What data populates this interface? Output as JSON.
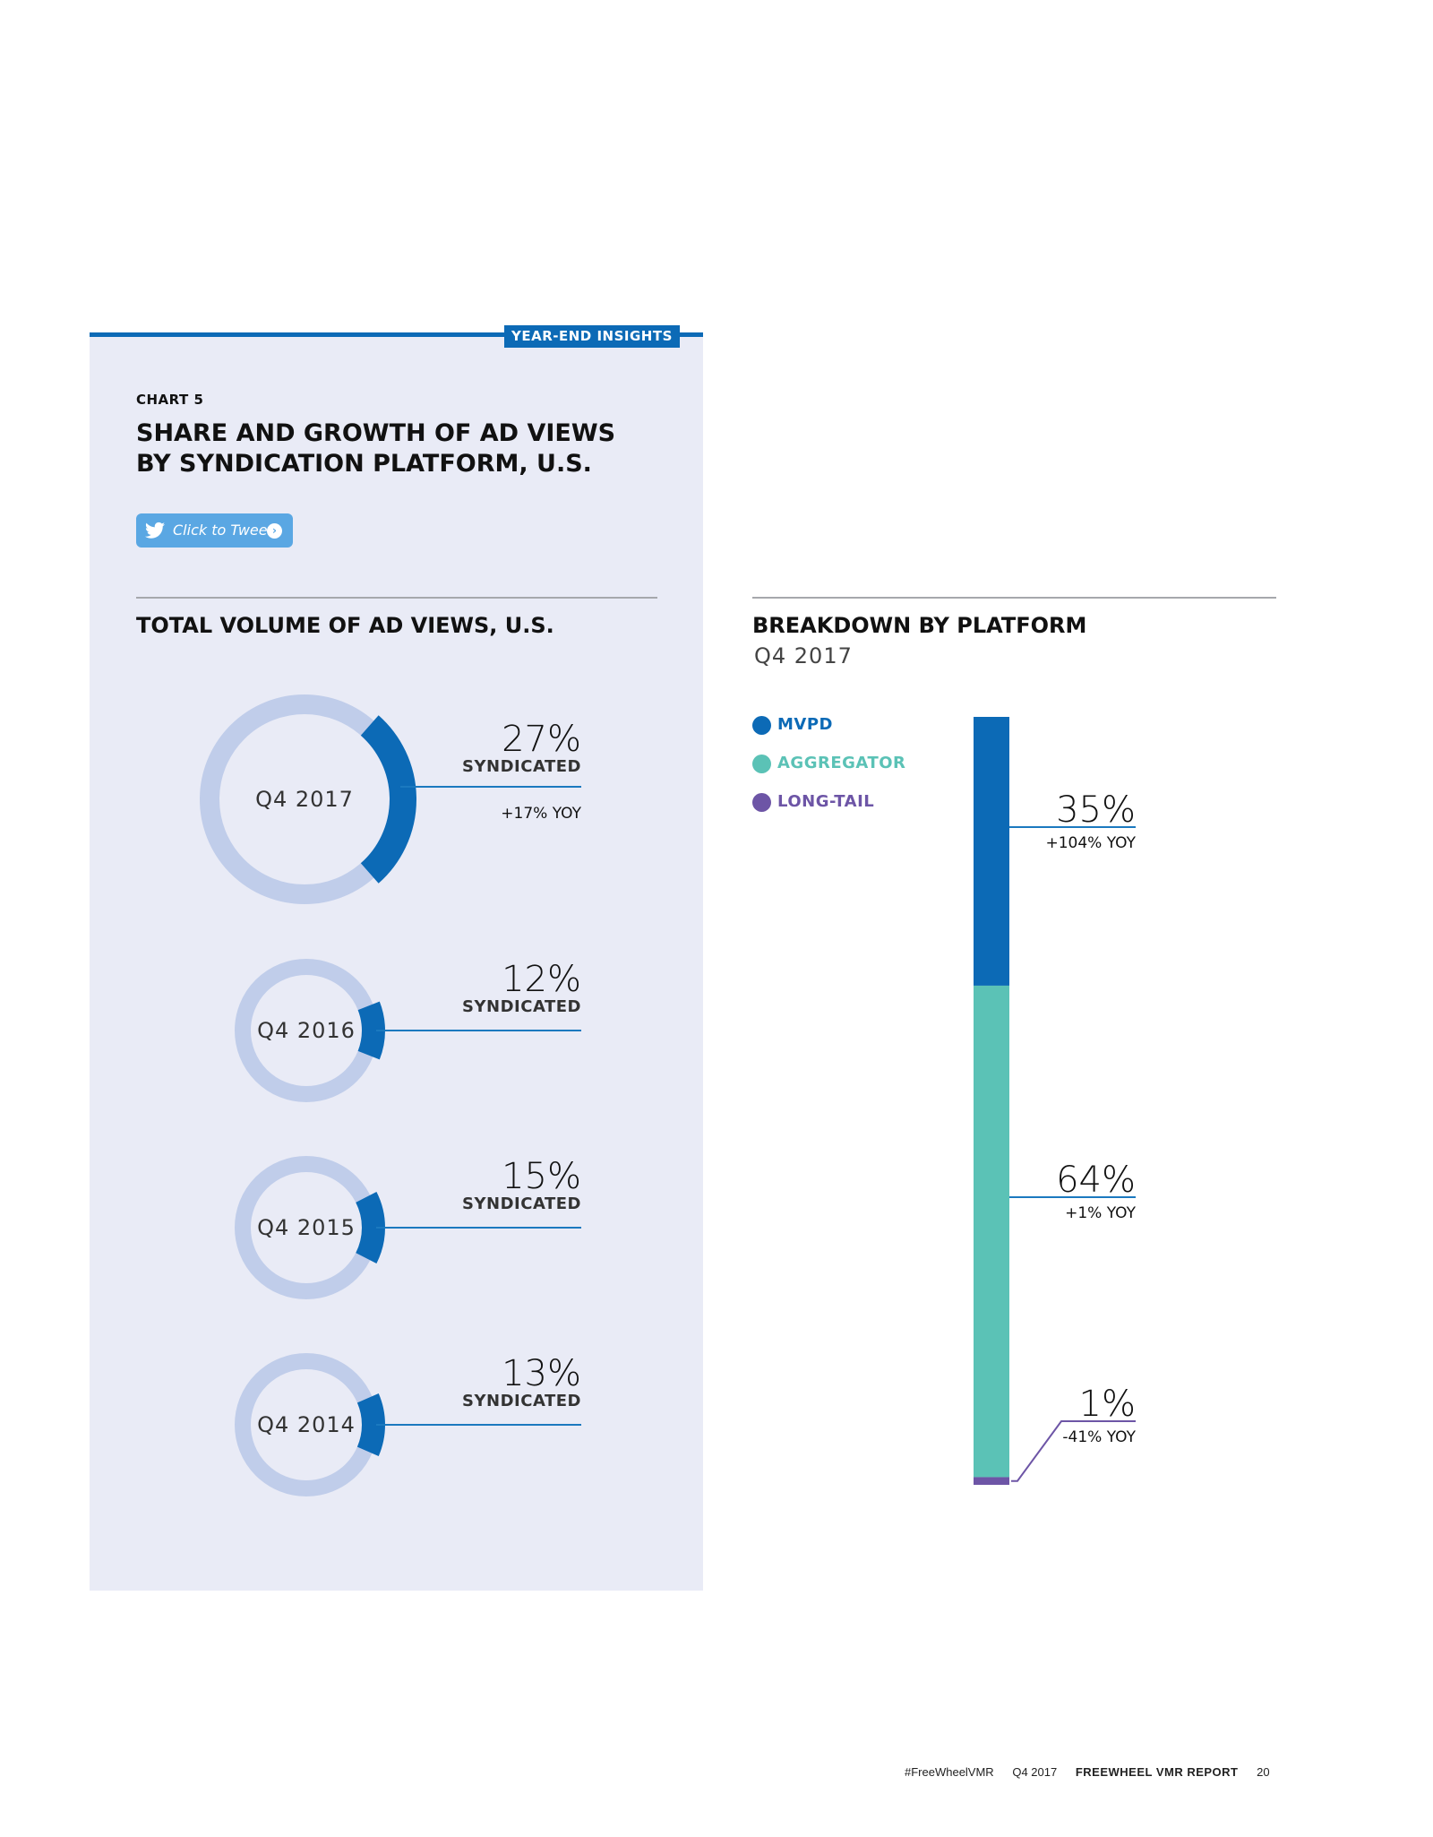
{
  "header": {
    "tag": "YEAR-END INSIGHTS"
  },
  "chart_label": "CHART 5",
  "title": "SHARE AND GROWTH OF AD VIEWS BY SYNDICATION PLATFORM, U.S.",
  "tweet_button": {
    "label": "Click to Tweet",
    "icon": "twitter-bird-icon",
    "arrow_icon": "chevron-right-icon"
  },
  "left_heading": "TOTAL VOLUME OF AD VIEWS, U.S.",
  "right_heading": "BREAKDOWN BY PLATFORM",
  "right_subheading": "Q4 2017",
  "legend": [
    {
      "label": "MVPD",
      "color": "#0c6ab6"
    },
    {
      "label": "AGGREGATOR",
      "color": "#5bc2b6"
    },
    {
      "label": "LONG-TAIL",
      "color": "#6d55a6"
    }
  ],
  "colors": {
    "accent": "#0c6ab6",
    "ring_track": "#c0cdea",
    "panel": "#e9ebf6",
    "aggregator": "#5bc2b6",
    "long_tail": "#6d55a6"
  },
  "footer": {
    "hashtag": "#FreeWheelVMR",
    "period": "Q4 2017",
    "report": "FREEWHEEL VMR REPORT",
    "page": "20"
  },
  "chart_data": [
    {
      "type": "pie",
      "title": "TOTAL VOLUME OF AD VIEWS, U.S.",
      "items": [
        {
          "period": "Q4 2017",
          "value": 27,
          "value_label": "27%",
          "label": "SYNDICATED",
          "yoy": "+17% YOY"
        },
        {
          "period": "Q4 2016",
          "value": 12,
          "value_label": "12%",
          "label": "SYNDICATED",
          "yoy": ""
        },
        {
          "period": "Q4 2015",
          "value": 15,
          "value_label": "15%",
          "label": "SYNDICATED",
          "yoy": ""
        },
        {
          "period": "Q4 2014",
          "value": 13,
          "value_label": "13%",
          "label": "SYNDICATED",
          "yoy": ""
        }
      ]
    },
    {
      "type": "bar",
      "title": "BREAKDOWN BY PLATFORM",
      "subtitle": "Q4 2017",
      "stacked": true,
      "series": [
        {
          "name": "MVPD",
          "value": 35,
          "value_label": "35%",
          "yoy": "+104% YOY",
          "color": "#0c6ab6"
        },
        {
          "name": "AGGREGATOR",
          "value": 64,
          "value_label": "64%",
          "yoy": "+1% YOY",
          "color": "#5bc2b6"
        },
        {
          "name": "LONG-TAIL",
          "value": 1,
          "value_label": "1%",
          "yoy": "-41% YOY",
          "color": "#6d55a6"
        }
      ]
    }
  ]
}
